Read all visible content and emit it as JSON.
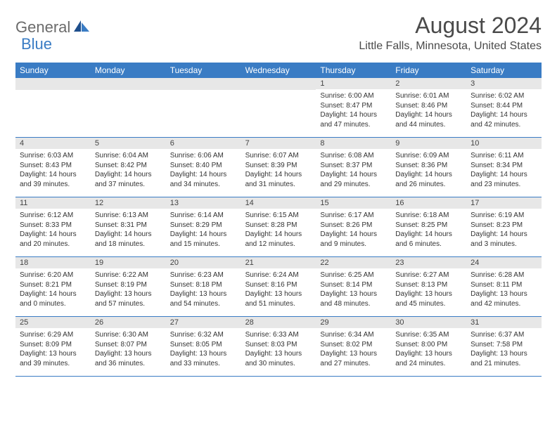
{
  "logo": {
    "part1": "General",
    "part2": "Blue"
  },
  "title": "August 2024",
  "location": "Little Falls, Minnesota, United States",
  "accent_color": "#3a7cc4",
  "header_bg": "#e7e7e7",
  "day_names": [
    "Sunday",
    "Monday",
    "Tuesday",
    "Wednesday",
    "Thursday",
    "Friday",
    "Saturday"
  ],
  "weeks": [
    [
      null,
      null,
      null,
      null,
      {
        "n": "1",
        "sr": "6:00 AM",
        "ss": "8:47 PM",
        "dlh": "14",
        "dlm": "47"
      },
      {
        "n": "2",
        "sr": "6:01 AM",
        "ss": "8:46 PM",
        "dlh": "14",
        "dlm": "44"
      },
      {
        "n": "3",
        "sr": "6:02 AM",
        "ss": "8:44 PM",
        "dlh": "14",
        "dlm": "42"
      }
    ],
    [
      {
        "n": "4",
        "sr": "6:03 AM",
        "ss": "8:43 PM",
        "dlh": "14",
        "dlm": "39"
      },
      {
        "n": "5",
        "sr": "6:04 AM",
        "ss": "8:42 PM",
        "dlh": "14",
        "dlm": "37"
      },
      {
        "n": "6",
        "sr": "6:06 AM",
        "ss": "8:40 PM",
        "dlh": "14",
        "dlm": "34"
      },
      {
        "n": "7",
        "sr": "6:07 AM",
        "ss": "8:39 PM",
        "dlh": "14",
        "dlm": "31"
      },
      {
        "n": "8",
        "sr": "6:08 AM",
        "ss": "8:37 PM",
        "dlh": "14",
        "dlm": "29"
      },
      {
        "n": "9",
        "sr": "6:09 AM",
        "ss": "8:36 PM",
        "dlh": "14",
        "dlm": "26"
      },
      {
        "n": "10",
        "sr": "6:11 AM",
        "ss": "8:34 PM",
        "dlh": "14",
        "dlm": "23"
      }
    ],
    [
      {
        "n": "11",
        "sr": "6:12 AM",
        "ss": "8:33 PM",
        "dlh": "14",
        "dlm": "20"
      },
      {
        "n": "12",
        "sr": "6:13 AM",
        "ss": "8:31 PM",
        "dlh": "14",
        "dlm": "18"
      },
      {
        "n": "13",
        "sr": "6:14 AM",
        "ss": "8:29 PM",
        "dlh": "14",
        "dlm": "15"
      },
      {
        "n": "14",
        "sr": "6:15 AM",
        "ss": "8:28 PM",
        "dlh": "14",
        "dlm": "12"
      },
      {
        "n": "15",
        "sr": "6:17 AM",
        "ss": "8:26 PM",
        "dlh": "14",
        "dlm": "9"
      },
      {
        "n": "16",
        "sr": "6:18 AM",
        "ss": "8:25 PM",
        "dlh": "14",
        "dlm": "6"
      },
      {
        "n": "17",
        "sr": "6:19 AM",
        "ss": "8:23 PM",
        "dlh": "14",
        "dlm": "3"
      }
    ],
    [
      {
        "n": "18",
        "sr": "6:20 AM",
        "ss": "8:21 PM",
        "dlh": "14",
        "dlm": "0"
      },
      {
        "n": "19",
        "sr": "6:22 AM",
        "ss": "8:19 PM",
        "dlh": "13",
        "dlm": "57"
      },
      {
        "n": "20",
        "sr": "6:23 AM",
        "ss": "8:18 PM",
        "dlh": "13",
        "dlm": "54"
      },
      {
        "n": "21",
        "sr": "6:24 AM",
        "ss": "8:16 PM",
        "dlh": "13",
        "dlm": "51"
      },
      {
        "n": "22",
        "sr": "6:25 AM",
        "ss": "8:14 PM",
        "dlh": "13",
        "dlm": "48"
      },
      {
        "n": "23",
        "sr": "6:27 AM",
        "ss": "8:13 PM",
        "dlh": "13",
        "dlm": "45"
      },
      {
        "n": "24",
        "sr": "6:28 AM",
        "ss": "8:11 PM",
        "dlh": "13",
        "dlm": "42"
      }
    ],
    [
      {
        "n": "25",
        "sr": "6:29 AM",
        "ss": "8:09 PM",
        "dlh": "13",
        "dlm": "39"
      },
      {
        "n": "26",
        "sr": "6:30 AM",
        "ss": "8:07 PM",
        "dlh": "13",
        "dlm": "36"
      },
      {
        "n": "27",
        "sr": "6:32 AM",
        "ss": "8:05 PM",
        "dlh": "13",
        "dlm": "33"
      },
      {
        "n": "28",
        "sr": "6:33 AM",
        "ss": "8:03 PM",
        "dlh": "13",
        "dlm": "30"
      },
      {
        "n": "29",
        "sr": "6:34 AM",
        "ss": "8:02 PM",
        "dlh": "13",
        "dlm": "27"
      },
      {
        "n": "30",
        "sr": "6:35 AM",
        "ss": "8:00 PM",
        "dlh": "13",
        "dlm": "24"
      },
      {
        "n": "31",
        "sr": "6:37 AM",
        "ss": "7:58 PM",
        "dlh": "13",
        "dlm": "21"
      }
    ]
  ],
  "labels": {
    "sunrise": "Sunrise:",
    "sunset": "Sunset:",
    "daylight": "Daylight:",
    "hours": "hours",
    "and": "and",
    "minutes": "minutes."
  }
}
